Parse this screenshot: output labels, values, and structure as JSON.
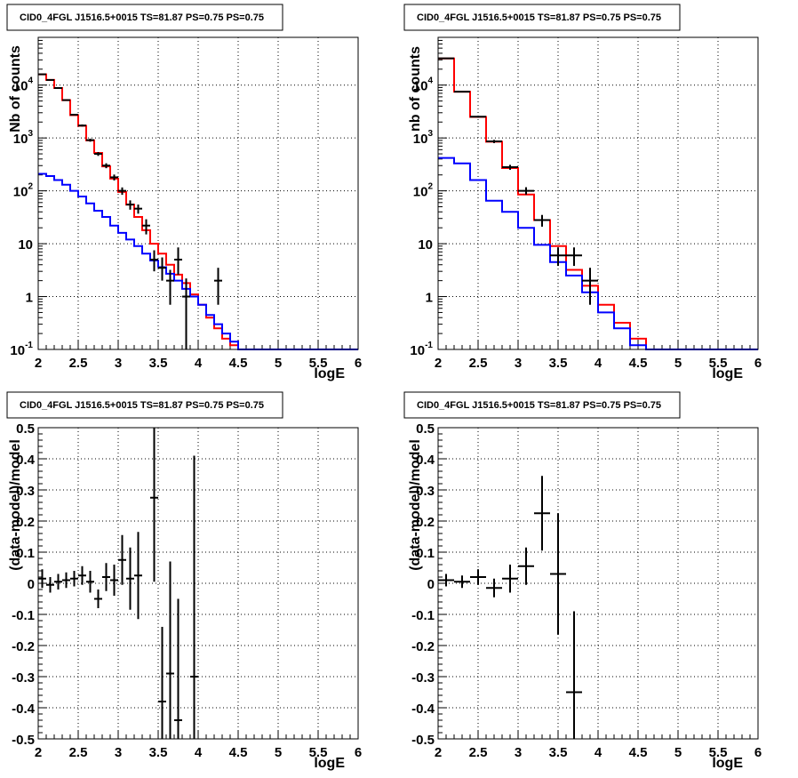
{
  "chart_data": [
    {
      "panel": "top-left",
      "type": "line",
      "title": "CID0_4FGL J1516.5+0015 TS=81.87 PS=0.75 PS=0.75",
      "xlabel": "logE",
      "ylabel": "Nb of counts",
      "xlim": [
        2,
        6
      ],
      "ylim": [
        0.1,
        80000
      ],
      "yscale": "log",
      "grid": true,
      "x_ticks": [
        "2",
        "2.5",
        "3",
        "3.5",
        "4",
        "4.5",
        "5",
        "5.5",
        "6"
      ],
      "y_ticks": [
        {
          "value": 0.1,
          "mantissa": "10",
          "exp": "-1"
        },
        {
          "value": 1,
          "mantissa": "1",
          "exp": ""
        },
        {
          "value": 10,
          "mantissa": "10",
          "exp": ""
        },
        {
          "value": 100,
          "mantissa": "10",
          "exp": "2"
        },
        {
          "value": 1000,
          "mantissa": "10",
          "exp": "3"
        },
        {
          "value": 10000,
          "mantissa": "10",
          "exp": "4"
        }
      ],
      "series": [
        {
          "color": "#ff0000",
          "kind": "step",
          "bin_width": 0.1,
          "bin_start": 2.0,
          "values": [
            16000,
            12500,
            8800,
            5200,
            2700,
            1700,
            900,
            520,
            290,
            170,
            95,
            55,
            32,
            18,
            10,
            6.5,
            4.0,
            2.6,
            1.8,
            1.1,
            0.7,
            0.4,
            0.25,
            0.16,
            0.12,
            0.1,
            0.1,
            0.1,
            0.1,
            0.1,
            0.1,
            0.1,
            0.1,
            0.1,
            0.1,
            0.1,
            0.1,
            0.1,
            0.1,
            0.1
          ]
        },
        {
          "color": "#0000ff",
          "kind": "step",
          "bin_width": 0.1,
          "bin_start": 2.0,
          "values": [
            210,
            190,
            160,
            130,
            100,
            78,
            58,
            42,
            32,
            22,
            16,
            12,
            9.0,
            6.5,
            4.8,
            3.6,
            2.7,
            2.0,
            1.4,
            1.0,
            0.7,
            0.45,
            0.3,
            0.2,
            0.14,
            0.1,
            0.1,
            0.1,
            0.1,
            0.1,
            0.1,
            0.1,
            0.1,
            0.1,
            0.1,
            0.1,
            0.1,
            0.1,
            0.1,
            0.1
          ]
        },
        {
          "color": "#000000",
          "kind": "errorbar",
          "points": [
            {
              "x": 2.05,
              "y": 16000,
              "lo": 15750,
              "hi": 16250
            },
            {
              "x": 2.15,
              "y": 12500,
              "lo": 12280,
              "hi": 12720
            },
            {
              "x": 2.25,
              "y": 8800,
              "lo": 8610,
              "hi": 8990
            },
            {
              "x": 2.35,
              "y": 5200,
              "lo": 5060,
              "hi": 5340
            },
            {
              "x": 2.45,
              "y": 2750,
              "lo": 2650,
              "hi": 2850
            },
            {
              "x": 2.55,
              "y": 1720,
              "lo": 1640,
              "hi": 1800
            },
            {
              "x": 2.65,
              "y": 910,
              "lo": 850,
              "hi": 970
            },
            {
              "x": 2.75,
              "y": 500,
              "lo": 458,
              "hi": 542
            },
            {
              "x": 2.85,
              "y": 300,
              "lo": 268,
              "hi": 332
            },
            {
              "x": 2.95,
              "y": 180,
              "lo": 157,
              "hi": 203
            },
            {
              "x": 3.05,
              "y": 100,
              "lo": 84,
              "hi": 116
            },
            {
              "x": 3.15,
              "y": 55,
              "lo": 44,
              "hi": 66
            },
            {
              "x": 3.25,
              "y": 46,
              "lo": 37,
              "hi": 55
            },
            {
              "x": 3.35,
              "y": 22,
              "lo": 15,
              "hi": 29
            },
            {
              "x": 3.45,
              "y": 5,
              "lo": 3,
              "hi": 7.5
            },
            {
              "x": 3.55,
              "y": 3.5,
              "lo": 2.0,
              "hi": 5.5
            },
            {
              "x": 3.65,
              "y": 2.0,
              "lo": 0.7,
              "hi": 3.2
            },
            {
              "x": 3.75,
              "y": 5.0,
              "lo": 2.6,
              "hi": 8.5
            },
            {
              "x": 3.85,
              "y": 1.0,
              "lo": 0.1,
              "hi": 2.2
            },
            {
              "x": 4.25,
              "y": 2.0,
              "lo": 0.7,
              "hi": 3.5
            }
          ]
        }
      ]
    },
    {
      "panel": "top-right",
      "type": "line",
      "title": "CID0_4FGL J1516.5+0015 TS=81.87 PS=0.75 PS=0.75",
      "xlabel": "logE",
      "ylabel": "nb of counts",
      "xlim": [
        2,
        6
      ],
      "ylim": [
        0.1,
        80000
      ],
      "yscale": "log",
      "grid": true,
      "x_ticks": [
        "2",
        "2.5",
        "3",
        "3.5",
        "4",
        "4.5",
        "5",
        "5.5",
        "6"
      ],
      "y_ticks": [
        {
          "value": 0.1,
          "mantissa": "10",
          "exp": "-1"
        },
        {
          "value": 1,
          "mantissa": "1",
          "exp": ""
        },
        {
          "value": 10,
          "mantissa": "10",
          "exp": ""
        },
        {
          "value": 100,
          "mantissa": "10",
          "exp": "2"
        },
        {
          "value": 1000,
          "mantissa": "10",
          "exp": "3"
        },
        {
          "value": 10000,
          "mantissa": "10",
          "exp": "4"
        }
      ],
      "series": [
        {
          "color": "#ff0000",
          "kind": "step",
          "bin_width": 0.2,
          "bin_start": 2.0,
          "values": [
            32000,
            7500,
            2500,
            850,
            270,
            85,
            28,
            9.0,
            3.2,
            1.6,
            0.7,
            0.32,
            0.16,
            0.1,
            0.1,
            0.1,
            0.1,
            0.1,
            0.1,
            0.1
          ]
        },
        {
          "color": "#0000ff",
          "kind": "step",
          "bin_width": 0.2,
          "bin_start": 2.0,
          "values": [
            420,
            330,
            160,
            65,
            40,
            20,
            9.5,
            4.5,
            2.5,
            1.2,
            0.5,
            0.25,
            0.12,
            0.1,
            0.1,
            0.1,
            0.1,
            0.1,
            0.1,
            0.1
          ]
        },
        {
          "color": "#000000",
          "kind": "errorbar",
          "points": [
            {
              "x": 2.1,
              "y": 32000,
              "lo": 31600,
              "hi": 32400
            },
            {
              "x": 2.3,
              "y": 7500,
              "lo": 7330,
              "hi": 7670
            },
            {
              "x": 2.5,
              "y": 2520,
              "lo": 2420,
              "hi": 2620
            },
            {
              "x": 2.7,
              "y": 860,
              "lo": 800,
              "hi": 920
            },
            {
              "x": 2.9,
              "y": 280,
              "lo": 250,
              "hi": 310
            },
            {
              "x": 3.1,
              "y": 100,
              "lo": 85,
              "hi": 117
            },
            {
              "x": 3.3,
              "y": 28,
              "lo": 21,
              "hi": 35
            },
            {
              "x": 3.5,
              "y": 6.0,
              "lo": 3.8,
              "hi": 8.5
            },
            {
              "x": 3.7,
              "y": 6.0,
              "lo": 3.8,
              "hi": 8.5
            },
            {
              "x": 3.9,
              "y": 2.0,
              "lo": 0.7,
              "hi": 3.5
            }
          ]
        }
      ]
    },
    {
      "panel": "bottom-left",
      "type": "scatter",
      "title": "CID0_4FGL J1516.5+0015 TS=81.87 PS=0.75 PS=0.75",
      "xlabel": "logE",
      "ylabel": "(data-model)/model",
      "xlim": [
        2,
        6
      ],
      "ylim": [
        -0.5,
        0.5
      ],
      "yscale": "linear",
      "grid": true,
      "x_ticks": [
        "2",
        "2.5",
        "3",
        "3.5",
        "4",
        "4.5",
        "5",
        "5.5",
        "6"
      ],
      "y_ticks": [
        "-0.5",
        "-0.4",
        "-0.3",
        "-0.2",
        "-0.1",
        "0",
        "0.1",
        "0.2",
        "0.3",
        "0.4",
        "0.5"
      ],
      "series": [
        {
          "color": "#000000",
          "kind": "errorbar",
          "half_width": 0.05,
          "points": [
            {
              "x": 2.05,
              "y": 0.015,
              "err": 0.03
            },
            {
              "x": 2.15,
              "y": -0.005,
              "err": 0.025
            },
            {
              "x": 2.25,
              "y": 0.005,
              "err": 0.025
            },
            {
              "x": 2.35,
              "y": 0.01,
              "err": 0.025
            },
            {
              "x": 2.45,
              "y": 0.015,
              "err": 0.025
            },
            {
              "x": 2.55,
              "y": 0.025,
              "err": 0.03
            },
            {
              "x": 2.65,
              "y": 0.005,
              "err": 0.035
            },
            {
              "x": 2.75,
              "y": -0.05,
              "err": 0.03
            },
            {
              "x": 2.85,
              "y": 0.02,
              "err": 0.045
            },
            {
              "x": 2.95,
              "y": 0.01,
              "err": 0.05
            },
            {
              "x": 3.05,
              "y": 0.075,
              "err": 0.08
            },
            {
              "x": 3.15,
              "y": 0.015,
              "err": 0.1
            },
            {
              "x": 3.25,
              "y": 0.025,
              "err": 0.14
            },
            {
              "x": 3.45,
              "y": 0.275,
              "err": 0.27
            },
            {
              "x": 3.55,
              "y": -0.38,
              "err": 0.24
            },
            {
              "x": 3.65,
              "y": -0.29,
              "err": 0.36
            },
            {
              "x": 3.75,
              "y": -0.44,
              "err": 0.39
            },
            {
              "x": 3.95,
              "y": -0.3,
              "err": 0.71
            }
          ]
        }
      ]
    },
    {
      "panel": "bottom-right",
      "type": "scatter",
      "title": "CID0_4FGL J1516.5+0015 TS=81.87 PS=0.75 PS=0.75",
      "xlabel": "logE",
      "ylabel": "(data-model)/model",
      "xlim": [
        2,
        6
      ],
      "ylim": [
        -0.5,
        0.5
      ],
      "yscale": "linear",
      "grid": true,
      "x_ticks": [
        "2",
        "2.5",
        "3",
        "3.5",
        "4",
        "4.5",
        "5",
        "5.5",
        "6"
      ],
      "y_ticks": [
        "-0.5",
        "-0.4",
        "-0.3",
        "-0.2",
        "-0.1",
        "0",
        "0.1",
        "0.2",
        "0.3",
        "0.4",
        "0.5"
      ],
      "series": [
        {
          "color": "#000000",
          "kind": "errorbar",
          "half_width": 0.1,
          "points": [
            {
              "x": 2.1,
              "y": 0.01,
              "err": 0.02
            },
            {
              "x": 2.3,
              "y": 0.005,
              "err": 0.02
            },
            {
              "x": 2.5,
              "y": 0.02,
              "err": 0.025
            },
            {
              "x": 2.7,
              "y": -0.015,
              "err": 0.03
            },
            {
              "x": 2.9,
              "y": 0.015,
              "err": 0.045
            },
            {
              "x": 3.1,
              "y": 0.055,
              "err": 0.06
            },
            {
              "x": 3.3,
              "y": 0.225,
              "err": 0.12
            },
            {
              "x": 3.5,
              "y": 0.03,
              "err": 0.195
            },
            {
              "x": 3.7,
              "y": -0.35,
              "err": 0.26
            }
          ]
        }
      ]
    }
  ]
}
